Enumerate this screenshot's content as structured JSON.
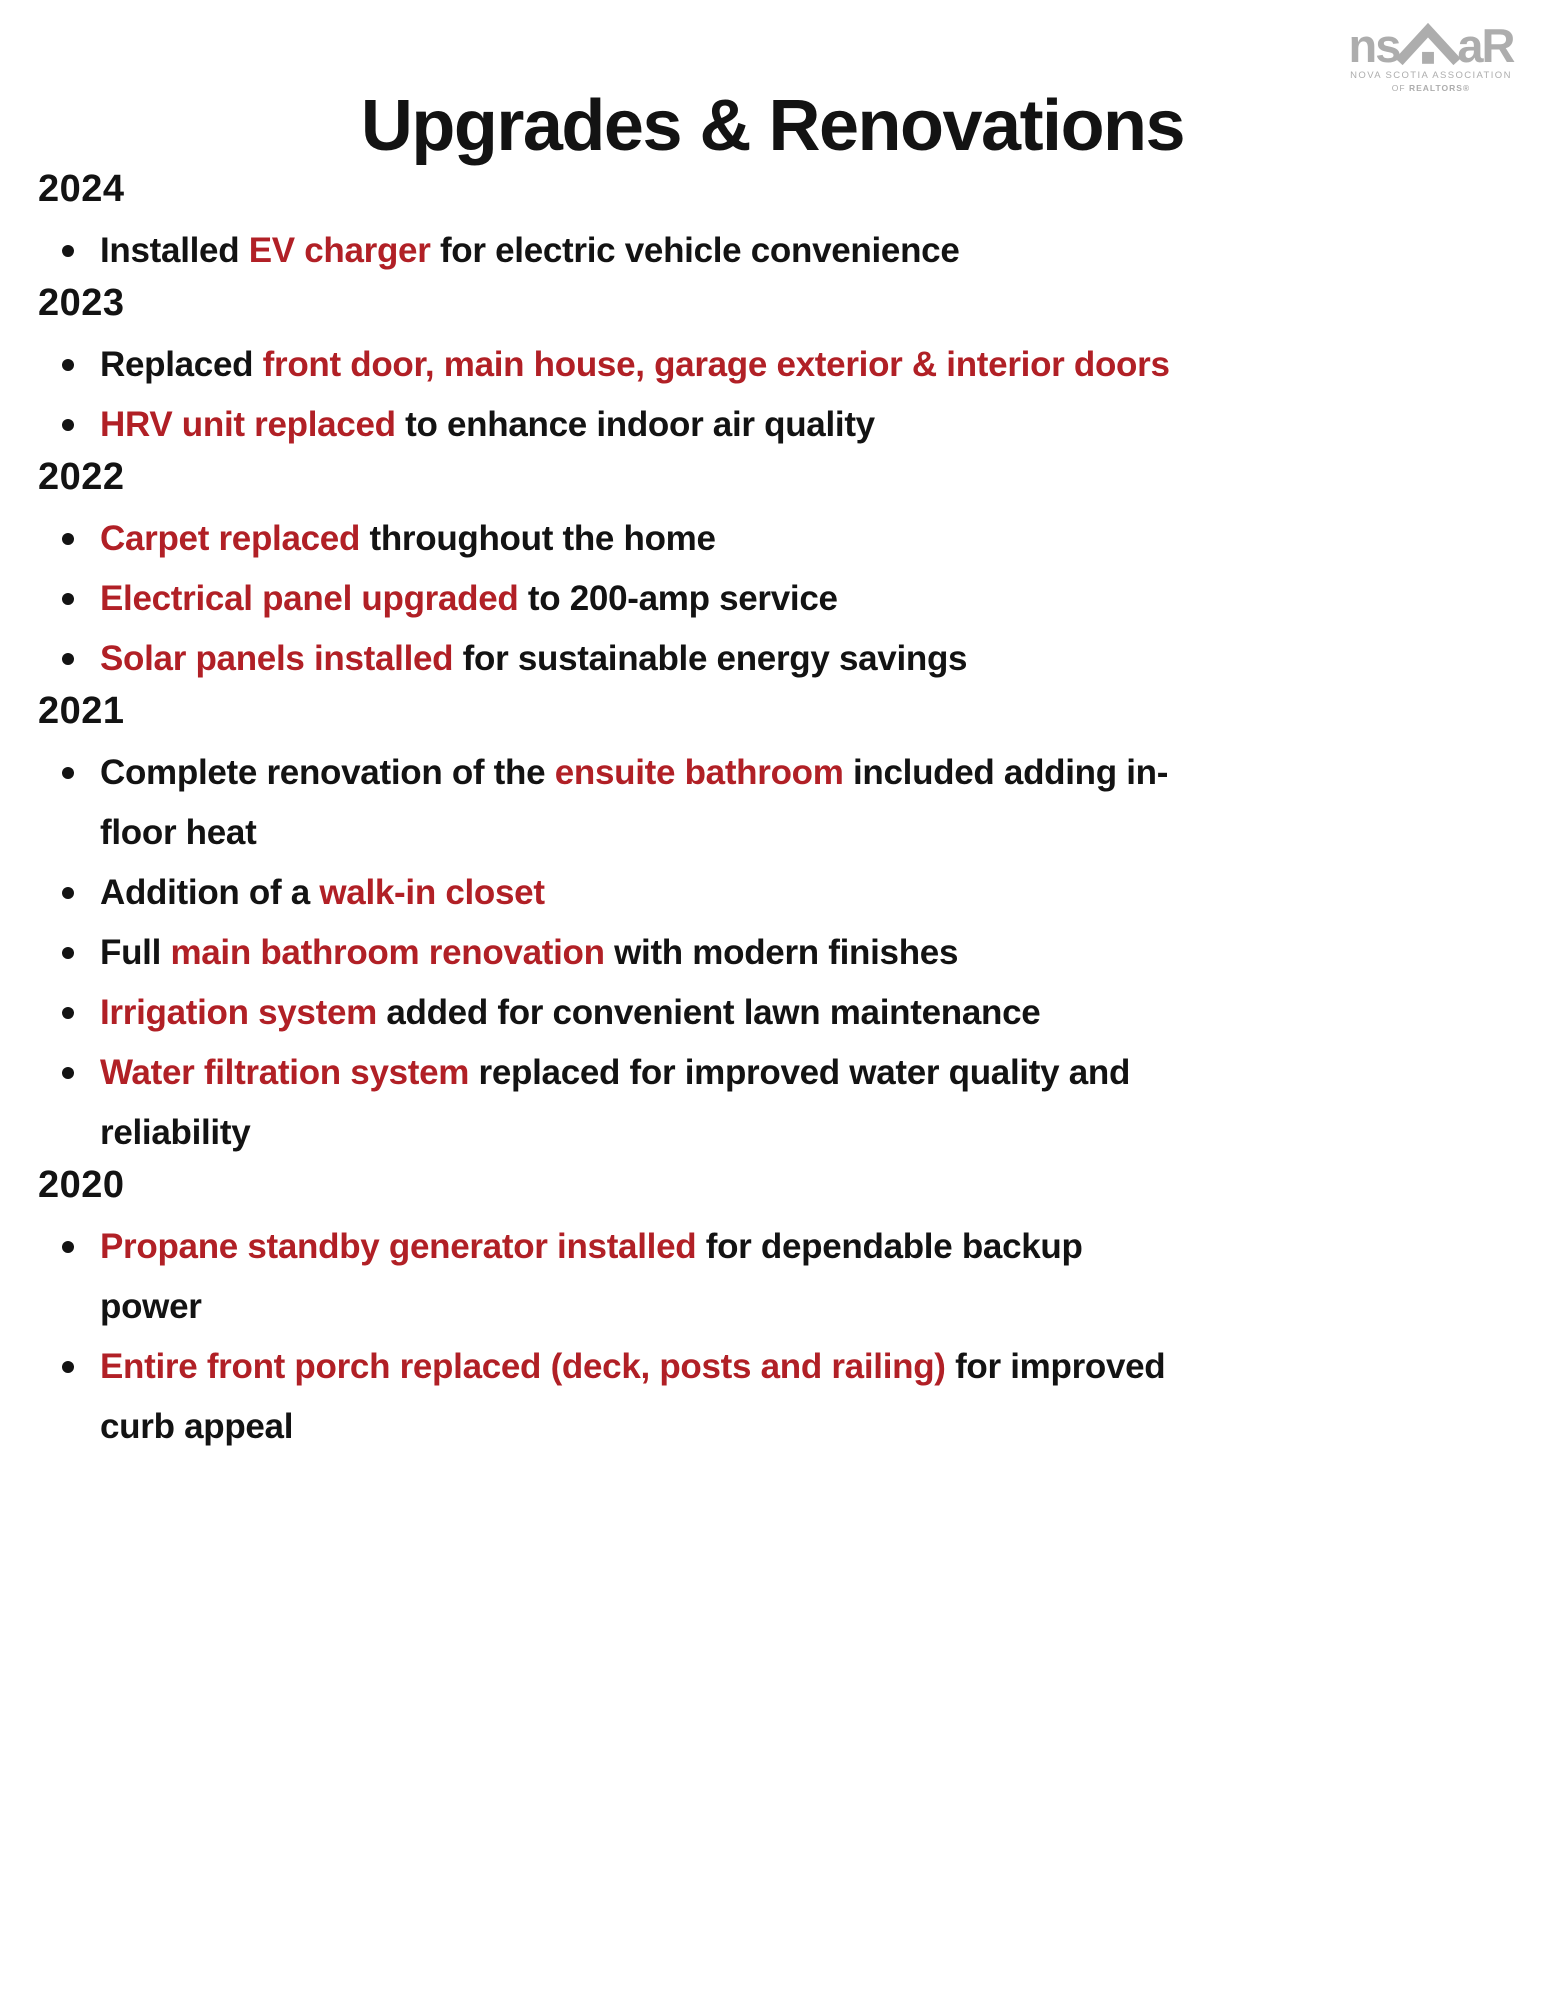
{
  "page": {
    "background": "#ffffff",
    "colors": {
      "accent_red": "#B12026",
      "text_black": "#131313",
      "logo_gray": "#ADADAD"
    },
    "title": "Upgrades & Renovations",
    "logo": {
      "left": "ns",
      "right": "aR",
      "icon": "house-roof-icon",
      "subtitle_line1": "NOVA SCOTIA ASSOCIATION",
      "subtitle_line2_of": "OF ",
      "subtitle_line2_realtors": "REALTORS®"
    }
  },
  "sections": [
    {
      "year": "2024",
      "items": [
        {
          "segments": [
            {
              "text": "Installed ",
              "red": false
            },
            {
              "text": "EV charger",
              "red": true
            },
            {
              "text": " for electric vehicle convenience",
              "red": false
            }
          ]
        }
      ]
    },
    {
      "year": "2023",
      "items": [
        {
          "segments": [
            {
              "text": "Replaced ",
              "red": false
            },
            {
              "text": "front door, main house, garage exterior & interior doors",
              "red": true
            }
          ]
        },
        {
          "segments": [
            {
              "text": "HRV unit replaced",
              "red": true
            },
            {
              "text": " to enhance indoor air quality",
              "red": false
            }
          ]
        }
      ]
    },
    {
      "year": "2022",
      "items": [
        {
          "segments": [
            {
              "text": "Carpet replaced",
              "red": true
            },
            {
              "text": " throughout the home",
              "red": false
            }
          ]
        },
        {
          "segments": [
            {
              "text": "Electrical panel upgraded",
              "red": true
            },
            {
              "text": " to 200-amp service",
              "red": false
            }
          ]
        },
        {
          "segments": [
            {
              "text": "Solar panels installed",
              "red": true
            },
            {
              "text": " for sustainable energy savings",
              "red": false
            }
          ]
        }
      ]
    },
    {
      "year": "2021",
      "items": [
        {
          "segments": [
            {
              "text": "Complete renovation of the ",
              "red": false
            },
            {
              "text": "ensuite bathroom",
              "red": true
            },
            {
              "text": " included adding in-",
              "red": false
            },
            {
              "br": true
            },
            {
              "text": "floor heat",
              "red": false
            }
          ]
        },
        {
          "segments": [
            {
              "text": "Addition of a ",
              "red": false
            },
            {
              "text": "walk-in closet",
              "red": true
            }
          ]
        },
        {
          "segments": [
            {
              "text": "Full ",
              "red": false
            },
            {
              "text": "main bathroom renovation",
              "red": true
            },
            {
              "text": " with modern finishes",
              "red": false
            }
          ]
        },
        {
          "segments": [
            {
              "text": "Irrigation system",
              "red": true
            },
            {
              "text": " added for convenient lawn maintenance",
              "red": false
            }
          ]
        },
        {
          "segments": [
            {
              "text": "Water filtration system",
              "red": true
            },
            {
              "text": " replaced for improved water quality and",
              "red": false
            },
            {
              "br": true
            },
            {
              "text": "reliability",
              "red": false
            }
          ]
        }
      ]
    },
    {
      "year": "2020",
      "items": [
        {
          "segments": [
            {
              "text": "Propane standby generator installed",
              "red": true
            },
            {
              "text": " for dependable backup",
              "red": false
            },
            {
              "br": true
            },
            {
              "text": "power",
              "red": false
            }
          ]
        },
        {
          "segments": [
            {
              "text": "Entire front porch replaced (deck, posts and railing)",
              "red": true
            },
            {
              "text": " for improved",
              "red": false
            },
            {
              "br": true
            },
            {
              "text": "curb appeal",
              "red": false
            }
          ]
        }
      ]
    }
  ]
}
